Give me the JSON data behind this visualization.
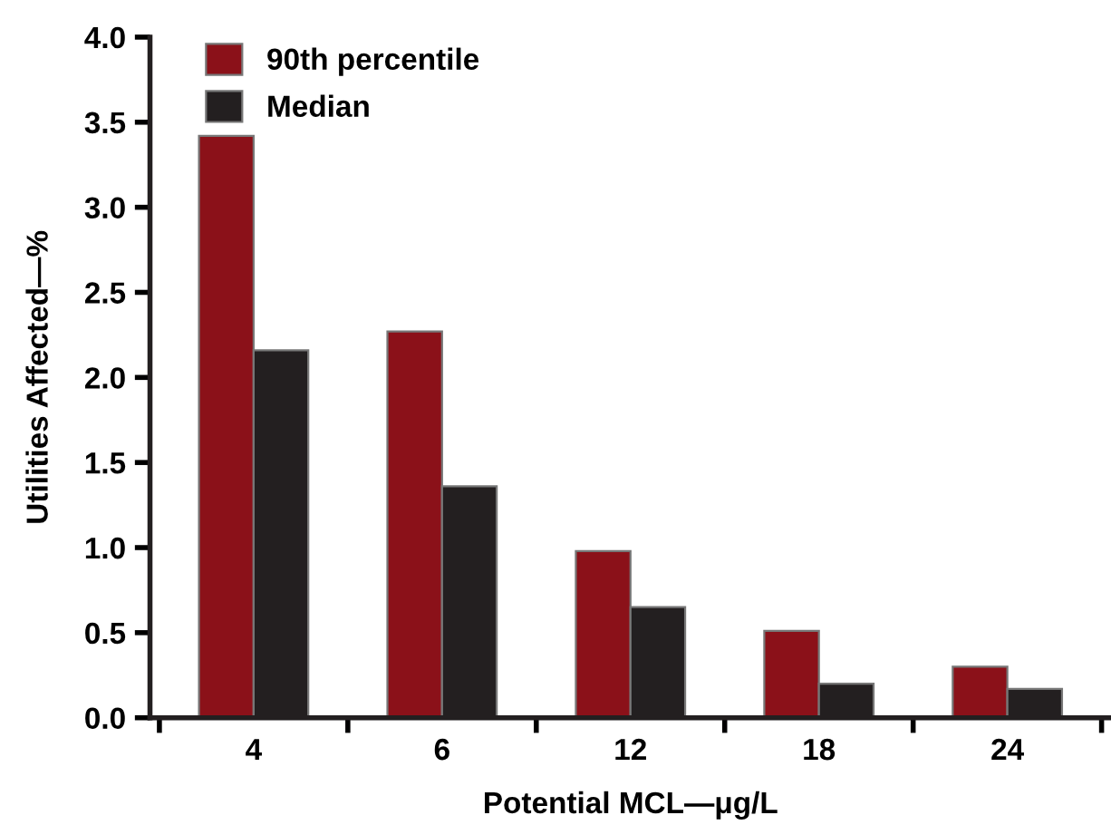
{
  "chart_data": {
    "type": "bar",
    "xlabel": "Potential MCL—μg/L",
    "ylabel": "Utilities Affected—%",
    "categories": [
      "4",
      "6",
      "12",
      "18",
      "24"
    ],
    "series": [
      {
        "name": "90th percentile",
        "color": "#8b1119",
        "values": [
          3.42,
          2.27,
          0.98,
          0.51,
          0.3
        ]
      },
      {
        "name": "Median",
        "color": "#231f20",
        "values": [
          2.16,
          1.36,
          0.65,
          0.2,
          0.17
        ]
      }
    ],
    "ylim": [
      0,
      4
    ],
    "yticks": [
      {
        "value": 0,
        "label": "0.0"
      },
      0.5,
      {
        "value": 1,
        "label": "1.0"
      },
      1.5,
      {
        "value": 2,
        "label": "2.0"
      },
      2.5,
      {
        "value": 3,
        "label": "3.0"
      },
      3.5,
      {
        "value": 4,
        "label": "4.0"
      }
    ],
    "grid": false,
    "legend": "top left"
  }
}
